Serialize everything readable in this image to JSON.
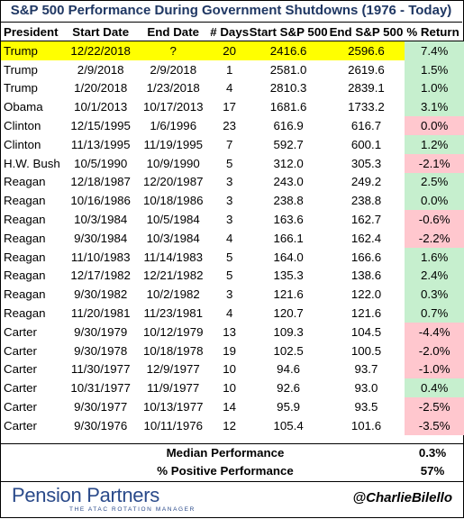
{
  "chart_data": {
    "type": "table",
    "title": "S&P 500 Performance During Government Shutdowns (1976 - Today)",
    "columns": [
      "President",
      "Start Date",
      "End Date",
      "# Days",
      "Start S&P 500",
      "End S&P 500",
      "% Return"
    ],
    "rows": [
      {
        "president": "Trump",
        "start_date": "12/22/2018",
        "end_date": "?",
        "days": "20",
        "start_sp": "2416.6",
        "end_sp": "2596.6",
        "ret": "7.4%",
        "ret_value": 7.4,
        "highlight": true
      },
      {
        "president": "Trump",
        "start_date": "2/9/2018",
        "end_date": "2/9/2018",
        "days": "1",
        "start_sp": "2581.0",
        "end_sp": "2619.6",
        "ret": "1.5%",
        "ret_value": 1.5
      },
      {
        "president": "Trump",
        "start_date": "1/20/2018",
        "end_date": "1/23/2018",
        "days": "4",
        "start_sp": "2810.3",
        "end_sp": "2839.1",
        "ret": "1.0%",
        "ret_value": 1.0
      },
      {
        "president": "Obama",
        "start_date": "10/1/2013",
        "end_date": "10/17/2013",
        "days": "17",
        "start_sp": "1681.6",
        "end_sp": "1733.2",
        "ret": "3.1%",
        "ret_value": 3.1
      },
      {
        "president": "Clinton",
        "start_date": "12/15/1995",
        "end_date": "1/6/1996",
        "days": "23",
        "start_sp": "616.9",
        "end_sp": "616.7",
        "ret": "0.0%",
        "ret_value": -0.03
      },
      {
        "president": "Clinton",
        "start_date": "11/13/1995",
        "end_date": "11/19/1995",
        "days": "7",
        "start_sp": "592.7",
        "end_sp": "600.1",
        "ret": "1.2%",
        "ret_value": 1.2
      },
      {
        "president": "H.W. Bush",
        "start_date": "10/5/1990",
        "end_date": "10/9/1990",
        "days": "5",
        "start_sp": "312.0",
        "end_sp": "305.3",
        "ret": "-2.1%",
        "ret_value": -2.1
      },
      {
        "president": "Reagan",
        "start_date": "12/18/1987",
        "end_date": "12/20/1987",
        "days": "3",
        "start_sp": "243.0",
        "end_sp": "249.2",
        "ret": "2.5%",
        "ret_value": 2.5
      },
      {
        "president": "Reagan",
        "start_date": "10/16/1986",
        "end_date": "10/18/1986",
        "days": "3",
        "start_sp": "238.8",
        "end_sp": "238.8",
        "ret": "0.0%",
        "ret_value": 0.0
      },
      {
        "president": "Reagan",
        "start_date": "10/3/1984",
        "end_date": "10/5/1984",
        "days": "3",
        "start_sp": "163.6",
        "end_sp": "162.7",
        "ret": "-0.6%",
        "ret_value": -0.6
      },
      {
        "president": "Reagan",
        "start_date": "9/30/1984",
        "end_date": "10/3/1984",
        "days": "4",
        "start_sp": "166.1",
        "end_sp": "162.4",
        "ret": "-2.2%",
        "ret_value": -2.2
      },
      {
        "president": "Reagan",
        "start_date": "11/10/1983",
        "end_date": "11/14/1983",
        "days": "5",
        "start_sp": "164.0",
        "end_sp": "166.6",
        "ret": "1.6%",
        "ret_value": 1.6
      },
      {
        "president": "Reagan",
        "start_date": "12/17/1982",
        "end_date": "12/21/1982",
        "days": "5",
        "start_sp": "135.3",
        "end_sp": "138.6",
        "ret": "2.4%",
        "ret_value": 2.4
      },
      {
        "president": "Reagan",
        "start_date": "9/30/1982",
        "end_date": "10/2/1982",
        "days": "3",
        "start_sp": "121.6",
        "end_sp": "122.0",
        "ret": "0.3%",
        "ret_value": 0.3
      },
      {
        "president": "Reagan",
        "start_date": "11/20/1981",
        "end_date": "11/23/1981",
        "days": "4",
        "start_sp": "120.7",
        "end_sp": "121.6",
        "ret": "0.7%",
        "ret_value": 0.7
      },
      {
        "president": "Carter",
        "start_date": "9/30/1979",
        "end_date": "10/12/1979",
        "days": "13",
        "start_sp": "109.3",
        "end_sp": "104.5",
        "ret": "-4.4%",
        "ret_value": -4.4
      },
      {
        "president": "Carter",
        "start_date": "9/30/1978",
        "end_date": "10/18/1978",
        "days": "19",
        "start_sp": "102.5",
        "end_sp": "100.5",
        "ret": "-2.0%",
        "ret_value": -2.0
      },
      {
        "president": "Carter",
        "start_date": "11/30/1977",
        "end_date": "12/9/1977",
        "days": "10",
        "start_sp": "94.6",
        "end_sp": "93.7",
        "ret": "-1.0%",
        "ret_value": -1.0
      },
      {
        "president": "Carter",
        "start_date": "10/31/1977",
        "end_date": "11/9/1977",
        "days": "10",
        "start_sp": "92.6",
        "end_sp": "93.0",
        "ret": "0.4%",
        "ret_value": 0.4
      },
      {
        "president": "Carter",
        "start_date": "9/30/1977",
        "end_date": "10/13/1977",
        "days": "14",
        "start_sp": "95.9",
        "end_sp": "93.5",
        "ret": "-2.5%",
        "ret_value": -2.5
      },
      {
        "president": "Carter",
        "start_date": "9/30/1976",
        "end_date": "10/11/1976",
        "days": "12",
        "start_sp": "105.4",
        "end_sp": "101.6",
        "ret": "-3.5%",
        "ret_value": -3.5
      }
    ],
    "summary": [
      {
        "label": "Median Performance",
        "value": "0.3%"
      },
      {
        "label": "% Positive Performance",
        "value": "57%"
      }
    ]
  },
  "footer": {
    "logo_main": "Pension Partners",
    "logo_sub": "THE ATAC ROTATION MANAGER",
    "handle": "@CharlieBilello"
  },
  "colors": {
    "title": "#1f3763",
    "highlight_row": "#ffff00",
    "positive_fill": "#c6efce",
    "negative_fill": "#ffc7ce",
    "logo": "#2a4a8a"
  }
}
